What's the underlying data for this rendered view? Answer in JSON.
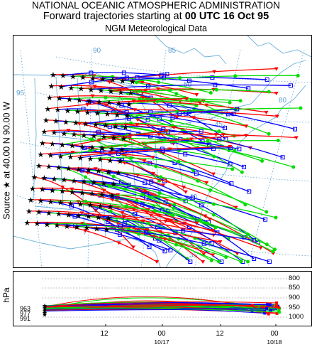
{
  "header": {
    "line1": "NATIONAL OCEANIC ATMOSPHERIC ADMINISTRATION",
    "line2_prefix": "Forward trajectories starting at ",
    "line2_bold": "00 UTC 16 Oct 95",
    "line3": "NGM  Meteorological Data"
  },
  "side_label": {
    "source": "Source",
    "star": "★",
    "at": "at",
    "lat": "40.00 N",
    "lon": "90.00 W"
  },
  "map": {
    "lat_labels": [
      "50",
      "45",
      "40",
      "35"
    ],
    "lon_labels": [
      "95",
      "90",
      "85",
      "80"
    ],
    "colors": {
      "red": "#ff0000",
      "blue": "#0000ff",
      "green": "#00dd00",
      "coast": "#6ab0d8",
      "grid": "#5aa0d0"
    }
  },
  "profile": {
    "y_label": "hPa",
    "pressure_levels": [
      "800",
      "850",
      "900",
      "950",
      "1000"
    ],
    "source_pressures": [
      "963",
      "977",
      "991"
    ],
    "x_ticks": [
      "12",
      "00",
      "12",
      "00"
    ],
    "x_dates": [
      "",
      "10/17",
      "",
      "10/18"
    ]
  }
}
